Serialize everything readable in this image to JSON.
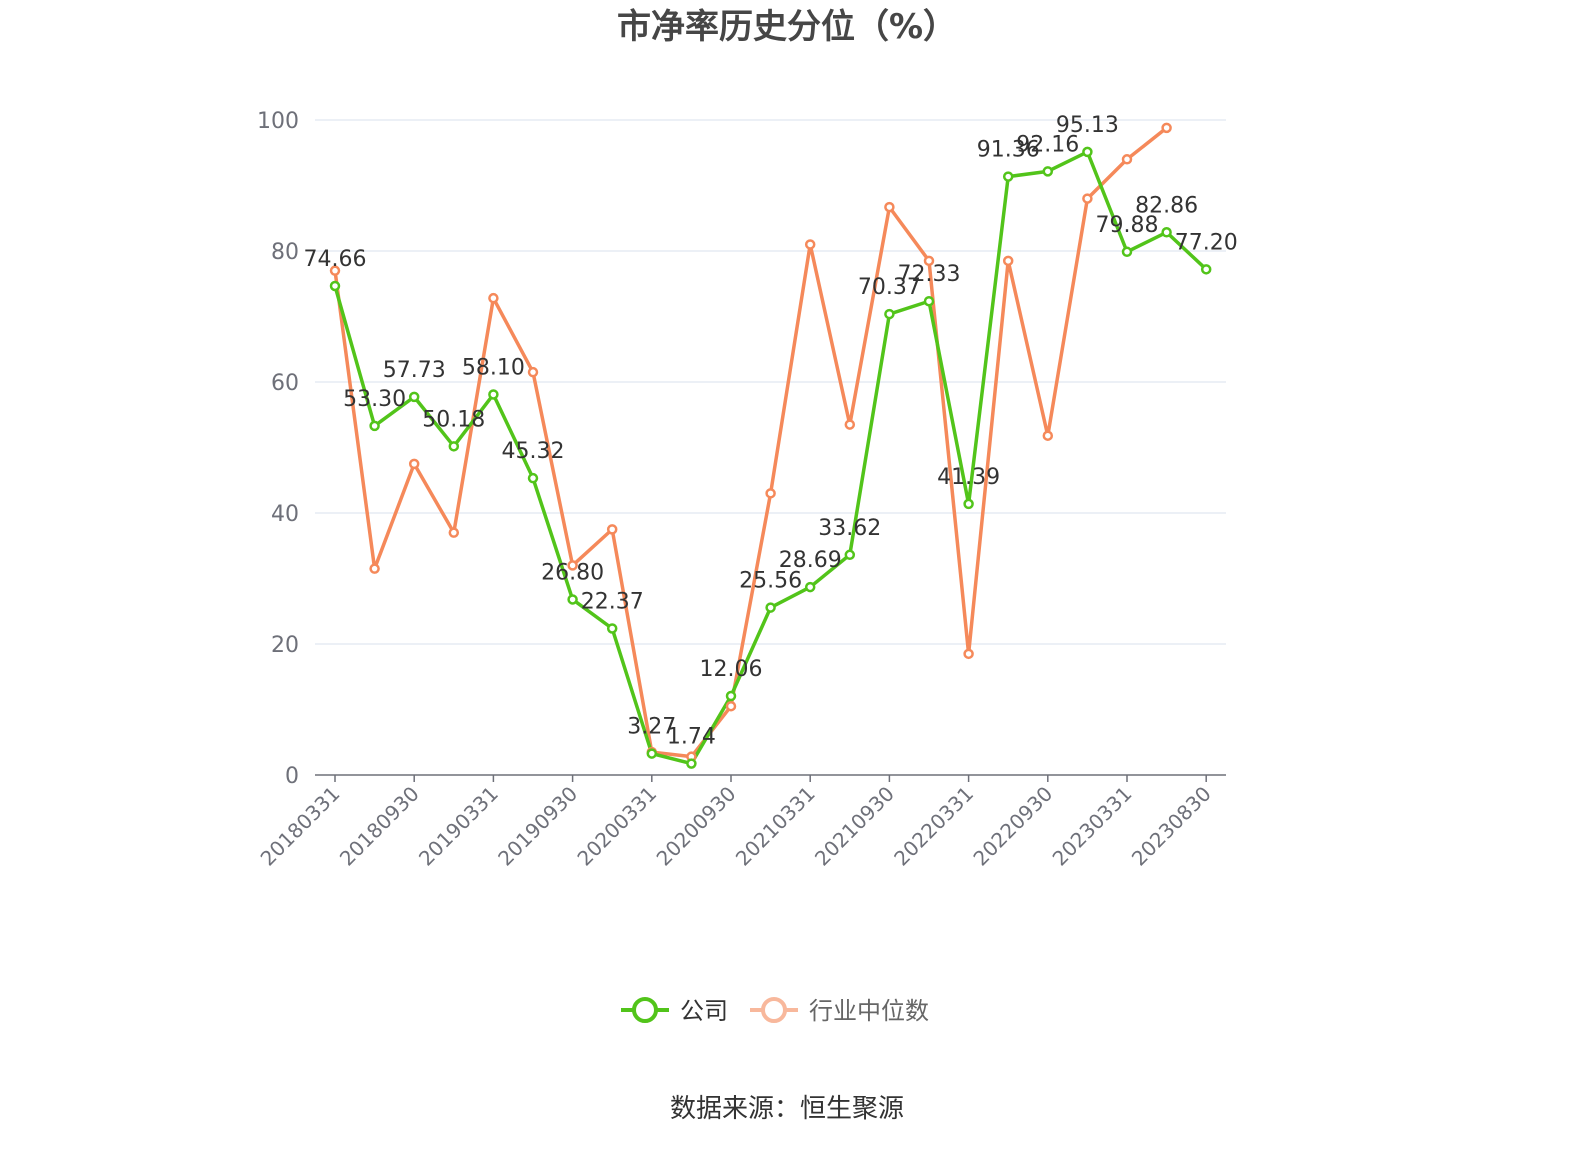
{
  "chart_data": {
    "type": "line",
    "title": "市净率历史分位（%）",
    "source": "数据来源：恒生聚源",
    "xlabel": "",
    "ylabel": "",
    "ylim": [
      0,
      100
    ],
    "yticks": [
      0,
      20,
      40,
      60,
      80,
      100
    ],
    "grid": true,
    "legend_position": "bottom",
    "x": [
      "20180331",
      "20180630",
      "20180930",
      "20181231",
      "20190331",
      "20190630",
      "20190930",
      "20191231",
      "20200331",
      "20200630",
      "20200930",
      "20201231",
      "20210331",
      "20210630",
      "20210930",
      "20211231",
      "20220331",
      "20220630",
      "20220930",
      "20221231",
      "20230331",
      "20230630",
      "20230830"
    ],
    "x_tick_labels": [
      "20180331",
      "20180930",
      "20190331",
      "20190930",
      "20200331",
      "20200930",
      "20210331",
      "20210930",
      "20220331",
      "20220930",
      "20230331",
      "20230830"
    ],
    "series": [
      {
        "name": "公司",
        "color": "#52c41a",
        "values": [
          74.66,
          53.3,
          57.73,
          50.18,
          58.1,
          45.32,
          26.8,
          22.37,
          3.27,
          1.74,
          12.06,
          25.56,
          28.69,
          33.62,
          70.37,
          72.33,
          41.39,
          91.36,
          92.16,
          95.13,
          79.88,
          82.86,
          77.2
        ],
        "labels": [
          "74.66",
          "53.30",
          "57.73",
          "50.18",
          "58.10",
          "45.32",
          "26.80",
          "22.37",
          "3.27",
          "1.74",
          "12.06",
          "25.56",
          "28.69",
          "33.62",
          "70.37",
          "72.33",
          "41.39",
          "91.36",
          "92.16",
          "95.13",
          "79.88",
          "82.86",
          "77.20"
        ]
      },
      {
        "name": "行业中位数",
        "color": "#f5895a",
        "legend_color": "#f8b89c",
        "values": [
          77.0,
          31.5,
          47.5,
          37.0,
          72.8,
          61.5,
          32.0,
          37.5,
          3.5,
          2.8,
          10.5,
          43.0,
          81.0,
          53.5,
          86.7,
          78.5,
          18.5,
          78.5,
          51.8,
          88.0,
          94.0,
          98.8,
          null
        ]
      }
    ]
  }
}
